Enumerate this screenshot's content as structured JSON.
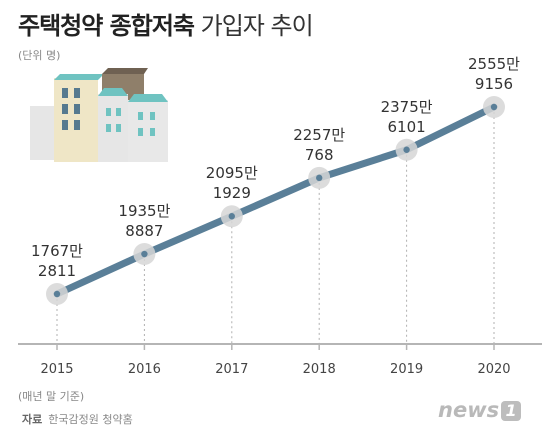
{
  "title_bold": "주택청약 종합저축",
  "title_light": "가입자 추이",
  "unit_note": "(단위 명)",
  "base_note": "(매년 말 기준)",
  "source_label": "자료",
  "source_text": "한국감정원 청약홈",
  "logo_text": "news",
  "logo_badge": "1",
  "colors": {
    "line": "#5a7f98",
    "marker": "#d6d6d6",
    "axis": "#b5b5b5",
    "building_teal": "#6fc3c1",
    "building_cream": "#efe6c6",
    "building_gray": "#e6e6e6",
    "building_brown": "#8f7f6a",
    "building_windows": "#567a8f"
  },
  "chart_data": {
    "type": "line",
    "title": "주택청약 종합저축 가입자 추이",
    "ylabel": "명",
    "categories": [
      "2015",
      "2016",
      "2017",
      "2018",
      "2019",
      "2020"
    ],
    "values": [
      17672811,
      19358887,
      20951929,
      22570768,
      23756101,
      25559156
    ],
    "labels": [
      [
        "1767만",
        "2811"
      ],
      [
        "1935만",
        "8887"
      ],
      [
        "2095만",
        "1929"
      ],
      [
        "2257만",
        "768"
      ],
      [
        "2375만",
        "6101"
      ],
      [
        "2555만",
        "9156"
      ]
    ]
  }
}
